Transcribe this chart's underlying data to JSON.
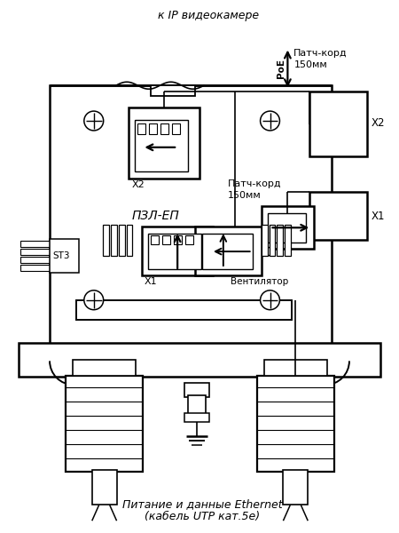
{
  "bg_color": "#ffffff",
  "line_color": "#000000",
  "title_top": "к IP видеокамере",
  "label_poe": "PoE",
  "label_patch150_1": "Патч-корд\n150мм",
  "label_patch150_2": "Патч-корд\n150мм",
  "label_pzl": "ПЗЛ-ЕП",
  "label_x1_inner": "X1",
  "label_x2_inner": "X2",
  "label_x1_outer": "X1",
  "label_x2_outer": "X2",
  "label_st3": "ST3",
  "label_vent": "Вентилятор",
  "label_bottom1": "Питание и данные Ethernet",
  "label_bottom2": "(кабель UTP кат.5e)"
}
